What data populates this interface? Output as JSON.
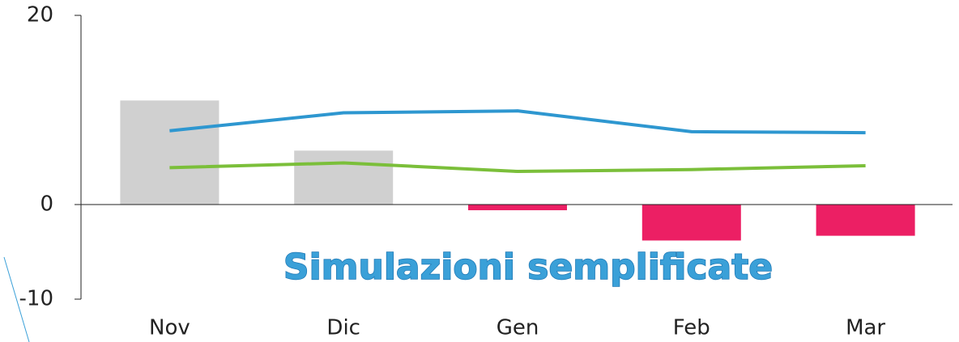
{
  "chart_data": {
    "type": "bar",
    "title": "Simulazioni semplificate",
    "categories": [
      "Nov",
      "Dic",
      "Gen",
      "Feb",
      "Mar"
    ],
    "values": [
      11.0,
      5.7,
      -0.6,
      -3.8,
      -3.3
    ],
    "color": "#d0d0d0",
    "negative_color": "#ec1f64",
    "series": [
      {
        "color": "#2e97d0",
        "values": [
          7.8,
          9.7,
          9.9,
          7.7,
          7.6
        ]
      },
      {
        "color": "#7bbf3a",
        "values": [
          3.9,
          4.4,
          3.5,
          3.7,
          4.1
        ]
      }
    ],
    "ylim": [
      -10,
      20
    ],
    "yticks": [
      -10,
      0,
      20
    ]
  }
}
